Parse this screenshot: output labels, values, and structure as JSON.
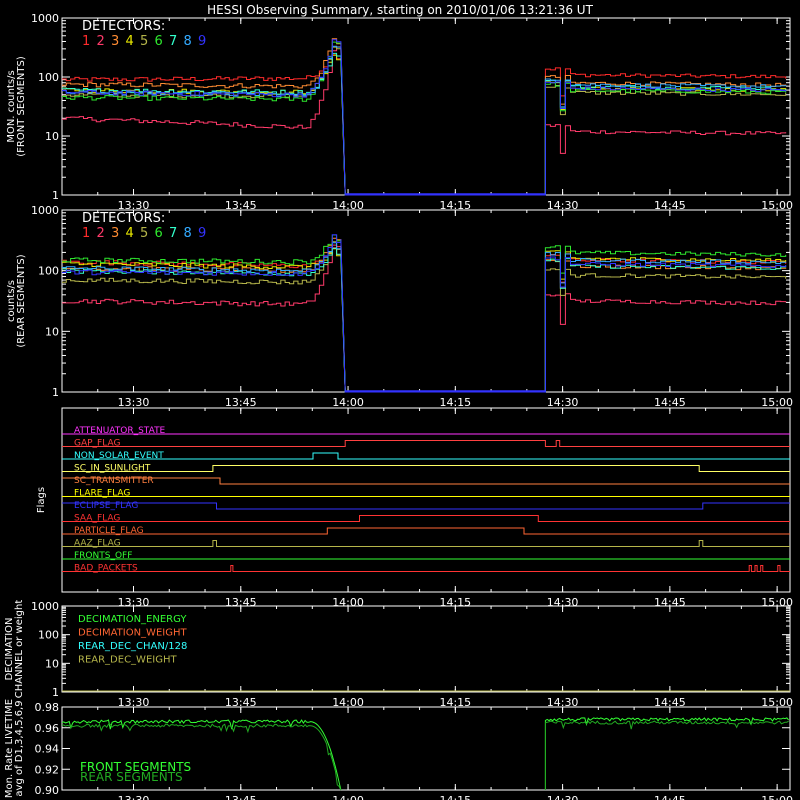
{
  "title": "HESSI Observing Summary, starting on 2010/01/06 13:21:36 UT",
  "x_tick_labels": [
    "13:30",
    "13:45",
    "14:00",
    "14:15",
    "14:30",
    "14:45",
    "15:00"
  ],
  "x_tick_minutes": [
    8.4,
    23.4,
    38.4,
    53.4,
    68.4,
    83.4,
    98.4
  ],
  "x_range_minutes": [
    -1.6,
    100.2
  ],
  "detector_colors": [
    "#ff2b2b",
    "#ff3a6a",
    "#ff8c33",
    "#e6e600",
    "#b5b54a",
    "#2ee82e",
    "#33ffcc",
    "#33aaff",
    "#3333ff"
  ],
  "chart_data": [
    {
      "type": "line",
      "name": "front",
      "ylabel": [
        "MON. counts/s",
        "(FRONT SEGMENTS)"
      ],
      "yscale": "log",
      "ylim": [
        1,
        1000
      ],
      "ytick_labels": [
        "1",
        "10",
        "100",
        "1000"
      ],
      "legend_title": "DETECTORS:",
      "legend_items": [
        "1",
        "2",
        "3",
        "4",
        "5",
        "6",
        "7",
        "8",
        "9"
      ],
      "gap": [
        38.0,
        66.0
      ],
      "peak_minute": 36.5,
      "peak_value": 550,
      "series": [
        {
          "label": "1",
          "level_start": 90,
          "level_end": 95,
          "post": 110
        },
        {
          "label": "2",
          "level_start": 20,
          "level_end": 14,
          "post": 12
        },
        {
          "label": "3",
          "level_start": 75,
          "level_end": 70,
          "post": 80
        },
        {
          "label": "4",
          "level_start": 60,
          "level_end": 55,
          "post": 65
        },
        {
          "label": "5",
          "level_start": 50,
          "level_end": 48,
          "post": 55
        },
        {
          "label": "6",
          "level_start": 45,
          "level_end": 42,
          "post": 60
        },
        {
          "label": "7",
          "level_start": 60,
          "level_end": 55,
          "post": 70
        },
        {
          "label": "8",
          "level_start": 55,
          "level_end": 50,
          "post": 75
        },
        {
          "label": "9",
          "level_start": 55,
          "level_end": 50,
          "post": 65
        }
      ]
    },
    {
      "type": "line",
      "name": "rear",
      "ylabel": [
        "counts/s",
        "(REAR SEGMENTS)"
      ],
      "yscale": "log",
      "ylim": [
        1,
        1000
      ],
      "ytick_labels": [
        "1",
        "10",
        "100",
        "1000"
      ],
      "legend_title": "DETECTORS:",
      "legend_items": [
        "1",
        "2",
        "3",
        "4",
        "5",
        "6",
        "7",
        "8",
        "9"
      ],
      "gap": [
        38.0,
        66.0
      ],
      "peak_minute": 36.5,
      "peak_value": 450,
      "series": [
        {
          "label": "1",
          "level_start": 140,
          "level_end": 120,
          "post": 150
        },
        {
          "label": "2",
          "level_start": 32,
          "level_end": 28,
          "post": 32
        },
        {
          "label": "3",
          "level_start": 110,
          "level_end": 100,
          "post": 120
        },
        {
          "label": "4",
          "level_start": 130,
          "level_end": 115,
          "post": 160
        },
        {
          "label": "5",
          "level_start": 70,
          "level_end": 65,
          "post": 85
        },
        {
          "label": "6",
          "level_start": 150,
          "level_end": 140,
          "post": 200
        },
        {
          "label": "7",
          "level_start": 100,
          "level_end": 90,
          "post": 120
        },
        {
          "label": "8",
          "level_start": 110,
          "level_end": 100,
          "post": 150
        },
        {
          "label": "9",
          "level_start": 95,
          "level_end": 90,
          "post": 130
        }
      ]
    },
    {
      "type": "line",
      "name": "flags",
      "ylabel": [
        "Flags"
      ],
      "flags": [
        {
          "label": "ATTENUATOR_STATE",
          "color": "#ff33ff",
          "segments": [
            [
              -1.6,
              0
            ]
          ]
        },
        {
          "label": "GAP_FLAG",
          "color": "#ff4040",
          "segments": [
            [
              -1.6,
              0
            ],
            [
              38,
              1
            ],
            [
              66,
              0
            ],
            [
              67.5,
              1
            ],
            [
              68,
              0
            ]
          ]
        },
        {
          "label": "NON_SOLAR_EVENT",
          "color": "#33ffff",
          "segments": [
            [
              -1.6,
              0
            ],
            [
              33.5,
              1
            ],
            [
              37,
              0
            ]
          ]
        },
        {
          "label": "SC_IN_SUNLIGHT",
          "color": "#ffff66",
          "segments": [
            [
              -1.6,
              0
            ],
            [
              19.5,
              1
            ],
            [
              87.5,
              0
            ]
          ]
        },
        {
          "label": "SC_TRANSMITTER",
          "color": "#ff7f3f",
          "segments": [
            [
              -1.6,
              1
            ],
            [
              20.5,
              0
            ]
          ]
        },
        {
          "label": "FLARE_FLAG",
          "color": "#ffff00",
          "segments": [
            [
              -1.6,
              0
            ]
          ]
        },
        {
          "label": "ECLIPSE_FLAG",
          "color": "#3333ff",
          "segments": [
            [
              -1.6,
              1
            ],
            [
              20,
              0
            ],
            [
              88,
              1
            ]
          ]
        },
        {
          "label": "SAA_FLAG",
          "color": "#ff3333",
          "segments": [
            [
              -1.6,
              0
            ],
            [
              40,
              1
            ],
            [
              65,
              0
            ]
          ]
        },
        {
          "label": "PARTICLE_FLAG",
          "color": "#ff6633",
          "segments": [
            [
              -1.6,
              0
            ],
            [
              35.5,
              1
            ],
            [
              63,
              0
            ]
          ]
        },
        {
          "label": "AAZ_FLAG",
          "color": "#b5b54a",
          "segments": [
            [
              -1.6,
              0
            ],
            [
              19.5,
              1
            ],
            [
              20,
              0
            ],
            [
              87.5,
              1
            ],
            [
              88,
              0
            ]
          ]
        },
        {
          "label": "FRONTS_OFF",
          "color": "#33ff33",
          "segments": [
            [
              -1.6,
              0
            ]
          ]
        },
        {
          "label": "BAD_PACKETS",
          "color": "#ff3333",
          "segments": [
            [
              -1.6,
              0
            ],
            [
              22,
              1
            ],
            [
              22.3,
              0
            ],
            [
              94.5,
              1
            ],
            [
              94.8,
              0
            ],
            [
              95.3,
              1
            ],
            [
              95.6,
              0
            ],
            [
              96.1,
              1
            ],
            [
              96.4,
              0
            ],
            [
              98.5,
              1
            ],
            [
              98.8,
              0
            ]
          ]
        }
      ]
    },
    {
      "type": "line",
      "name": "decimation",
      "ylabel": [
        "DECIMATION",
        "CHANNEL or weight"
      ],
      "yscale": "log",
      "ylim": [
        1,
        1000
      ],
      "ytick_labels": [
        "1",
        "10",
        "100",
        "1000"
      ],
      "legend_items": [
        {
          "label": "DECIMATION_ENERGY",
          "color": "#33ff33"
        },
        {
          "label": "DECIMATION_WEIGHT",
          "color": "#ff6633"
        },
        {
          "label": "REAR_DEC_CHAN/128",
          "color": "#33ffff"
        },
        {
          "label": "REAR_DEC_WEIGHT",
          "color": "#b5b54a"
        }
      ],
      "baseline_value": 1
    },
    {
      "type": "line",
      "name": "livetime",
      "ylabel": [
        "Mon. Rate LIVETIME",
        "avg of D1,3,4,5,6,9"
      ],
      "ylim": [
        0.9,
        0.98
      ],
      "ytick_labels": [
        "0.90",
        "0.92",
        "0.94",
        "0.96",
        "0.98"
      ],
      "ytick_values": [
        0.9,
        0.92,
        0.94,
        0.96,
        0.98
      ],
      "gap": [
        37.5,
        66.0
      ],
      "legend_items": [
        {
          "label": "FRONT SEGMENTS",
          "color": "#33ff33"
        },
        {
          "label": "REAR SEGMENTS",
          "color": "#22aa22"
        }
      ],
      "series": [
        {
          "label": "FRONT SEGMENTS",
          "level": 0.966,
          "post": 0.968
        },
        {
          "label": "REAR SEGMENTS",
          "level": 0.962,
          "post": 0.965
        }
      ]
    }
  ]
}
